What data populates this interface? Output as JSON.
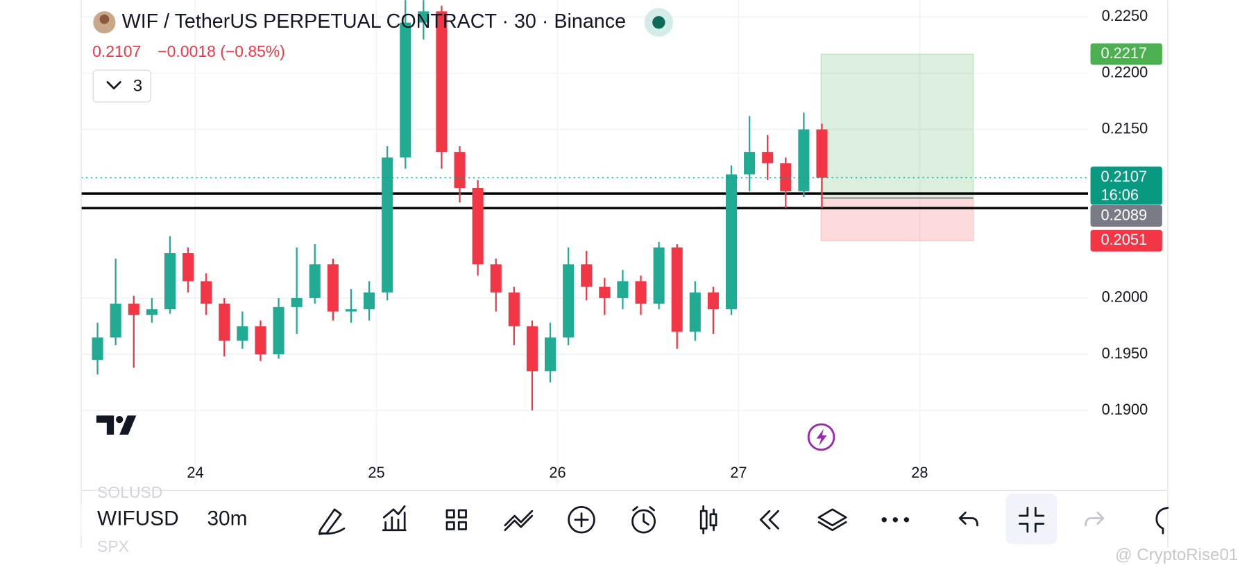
{
  "header": {
    "title": "WIF / TetherUS PERPETUAL CONTRACT · 30 · Binance",
    "change": "−0.0018 (−0.85%)",
    "indicators": 3
  },
  "chart_data": {
    "type": "candlestick",
    "x": [
      23.46,
      23.56,
      23.66,
      23.76,
      23.86,
      23.96,
      24.06,
      24.16,
      24.26,
      24.36,
      24.46,
      24.56,
      24.66,
      24.76,
      24.86,
      24.96,
      25.06,
      25.16,
      25.26,
      25.36,
      25.46,
      25.56,
      25.66,
      25.76,
      25.86,
      25.96,
      26.06,
      26.16,
      26.26,
      26.36,
      26.46,
      26.56,
      26.66,
      26.76,
      26.86,
      26.96,
      27.06,
      27.16,
      27.26,
      27.36,
      27.46
    ],
    "open": [
      0.1945,
      0.1965,
      0.1995,
      0.1985,
      0.199,
      0.204,
      0.2015,
      0.1995,
      0.1962,
      0.1975,
      0.195,
      0.1992,
      0.2,
      0.203,
      0.1988,
      0.199,
      0.2005,
      0.2125,
      0.2245,
      0.2255,
      0.213,
      0.2098,
      0.203,
      0.2005,
      0.1975,
      0.1935,
      0.1965,
      0.203,
      0.201,
      0.2,
      0.2015,
      0.1995,
      0.2045,
      0.197,
      0.2005,
      0.199,
      0.211,
      0.213,
      0.212,
      0.2095,
      0.215
    ],
    "high": [
      0.1978,
      0.2035,
      0.2002,
      0.2,
      0.2055,
      0.2045,
      0.2022,
      0.2,
      0.1988,
      0.198,
      0.2,
      0.2045,
      0.2048,
      0.2035,
      0.2008,
      0.2015,
      0.2135,
      0.2265,
      0.2265,
      0.226,
      0.2135,
      0.2105,
      0.2035,
      0.201,
      0.198,
      0.1978,
      0.2045,
      0.2042,
      0.2018,
      0.2025,
      0.202,
      0.205,
      0.2048,
      0.2015,
      0.201,
      0.2118,
      0.2162,
      0.2145,
      0.2125,
      0.2165,
      0.2155
    ],
    "low": [
      0.1932,
      0.1958,
      0.1938,
      0.1978,
      0.1986,
      0.2005,
      0.1985,
      0.1948,
      0.1955,
      0.1944,
      0.1946,
      0.1968,
      0.1995,
      0.198,
      0.1978,
      0.198,
      0.1998,
      0.2115,
      0.223,
      0.2115,
      0.2085,
      0.202,
      0.1988,
      0.1958,
      0.19,
      0.1925,
      0.1958,
      0.1998,
      0.1985,
      0.199,
      0.1985,
      0.199,
      0.1955,
      0.1962,
      0.1968,
      0.1985,
      0.2095,
      0.2105,
      0.208,
      0.209,
      0.208
    ],
    "close": [
      0.1965,
      0.1995,
      0.1985,
      0.199,
      0.204,
      0.2015,
      0.1995,
      0.1962,
      0.1975,
      0.195,
      0.1992,
      0.2,
      0.203,
      0.1988,
      0.199,
      0.2005,
      0.2125,
      0.2245,
      0.2255,
      0.213,
      0.2098,
      0.203,
      0.2005,
      0.1975,
      0.1935,
      0.1965,
      0.203,
      0.201,
      0.2,
      0.2015,
      0.1995,
      0.2045,
      0.197,
      0.2005,
      0.199,
      0.211,
      0.213,
      0.212,
      0.2095,
      0.215,
      0.2107
    ],
    "up_color": "#22ab94",
    "down_color": "#f23645",
    "xlim": [
      23.37,
      28.93
    ],
    "ylim": [
      0.1858,
      0.2265
    ],
    "xticks": [
      24,
      25,
      26,
      27,
      28
    ],
    "yticks": [
      {
        "value": 0.225,
        "label": "0.2250"
      },
      {
        "value": 0.22,
        "label": "0.2200"
      },
      {
        "value": 0.215,
        "label": "0.2150"
      },
      {
        "value": 0.2,
        "label": "0.2000"
      },
      {
        "value": 0.195,
        "label": "0.1950"
      },
      {
        "value": 0.19,
        "label": "0.1900"
      }
    ],
    "grid": true,
    "last_price": 0.2107,
    "countdown": "16:06",
    "hlines": [
      0.2093,
      0.208
    ],
    "position": {
      "entry": 0.2089,
      "target": 0.2217,
      "stop": 0.2051,
      "x": [
        27.455,
        28.295
      ]
    }
  },
  "toolbar": {
    "symbol": "WIFUSD",
    "interval": "30m",
    "ghost_symbols": [
      "SOLUSD",
      "SPX"
    ]
  },
  "watermark": "@ CryptoRise01"
}
